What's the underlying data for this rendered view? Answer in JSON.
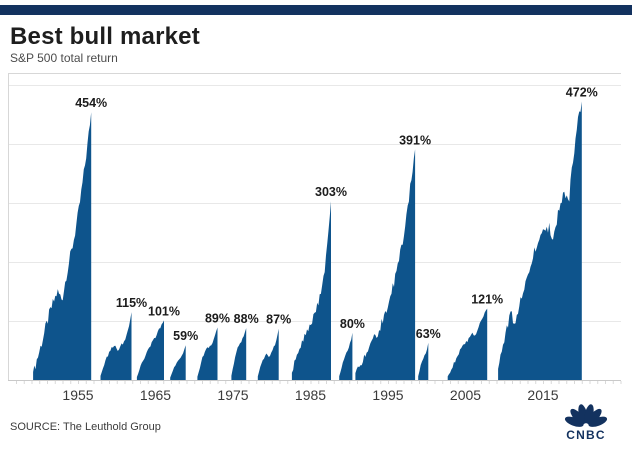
{
  "header": {
    "title": "Best bull market",
    "subtitle": "S&P 500 total return"
  },
  "footer": {
    "source": "SOURCE: The Leuthold Group",
    "logo_text": "CNBC"
  },
  "colors": {
    "brand_navy": "#13325f",
    "area_fill": "#0e548c",
    "gridline": "#e8e8e8",
    "plot_frame": "#d7d7d7",
    "axis_line": "#c9c9c9",
    "tick_mark": "#d9d9d9",
    "peak_label": "#1c1c1c",
    "year_label": "#3a3a3a"
  },
  "chart_data": {
    "type": "area",
    "title": "Best bull market",
    "subtitle": "S&P 500 total return",
    "source": "The Leuthold Group",
    "unit": "percent total return",
    "x_range": [
      1946,
      2021.3
    ],
    "y_range_pct": [
      0,
      533
    ],
    "y_gridlines_pct": [
      100,
      200,
      300,
      400,
      500
    ],
    "x_ticks": [
      1955,
      1965,
      1975,
      1985,
      1995,
      2005,
      2015
    ],
    "grid": "horizontal gridlines, no y-axis tick labels",
    "legend": false,
    "bulls": [
      {
        "label": "454%",
        "peak_pct": 454,
        "start_year": 1949.2,
        "end_year": 1956.7,
        "trajectory": [
          [
            0,
            0.03
          ],
          [
            0.1,
            0.1
          ],
          [
            0.2,
            0.18
          ],
          [
            0.3,
            0.26
          ],
          [
            0.42,
            0.33
          ],
          [
            0.5,
            0.3
          ],
          [
            0.58,
            0.4
          ],
          [
            0.68,
            0.5
          ],
          [
            0.78,
            0.62
          ],
          [
            0.88,
            0.78
          ],
          [
            0.95,
            0.9
          ],
          [
            1,
            1
          ]
        ]
      },
      {
        "label": "115%",
        "peak_pct": 115,
        "start_year": 1957.9,
        "end_year": 1961.9,
        "trajectory": [
          [
            0,
            0.06
          ],
          [
            0.18,
            0.3
          ],
          [
            0.35,
            0.48
          ],
          [
            0.45,
            0.52
          ],
          [
            0.55,
            0.44
          ],
          [
            0.68,
            0.52
          ],
          [
            0.8,
            0.58
          ],
          [
            0.9,
            0.75
          ],
          [
            1,
            1
          ]
        ]
      },
      {
        "label": "101%",
        "peak_pct": 101,
        "start_year": 1962.6,
        "end_year": 1966.1,
        "trajectory": [
          [
            0,
            0.05
          ],
          [
            0.2,
            0.3
          ],
          [
            0.4,
            0.5
          ],
          [
            0.6,
            0.66
          ],
          [
            0.75,
            0.78
          ],
          [
            0.88,
            0.9
          ],
          [
            1,
            1
          ]
        ]
      },
      {
        "label": "59%",
        "peak_pct": 59,
        "start_year": 1966.9,
        "end_year": 1968.9,
        "trajectory": [
          [
            0,
            0.07
          ],
          [
            0.25,
            0.35
          ],
          [
            0.5,
            0.55
          ],
          [
            0.7,
            0.68
          ],
          [
            0.85,
            0.8
          ],
          [
            1,
            1
          ]
        ]
      },
      {
        "label": "89%",
        "peak_pct": 89,
        "start_year": 1970.4,
        "end_year": 1973.0,
        "trajectory": [
          [
            0,
            0.06
          ],
          [
            0.25,
            0.42
          ],
          [
            0.45,
            0.6
          ],
          [
            0.6,
            0.62
          ],
          [
            0.72,
            0.68
          ],
          [
            0.85,
            0.8
          ],
          [
            1,
            1
          ]
        ]
      },
      {
        "label": "88%",
        "peak_pct": 88,
        "start_year": 1974.8,
        "end_year": 1976.7,
        "trajectory": [
          [
            0,
            0.08
          ],
          [
            0.3,
            0.52
          ],
          [
            0.5,
            0.68
          ],
          [
            0.7,
            0.76
          ],
          [
            0.85,
            0.84
          ],
          [
            1,
            1
          ]
        ]
      },
      {
        "label": "87%",
        "peak_pct": 87,
        "start_year": 1978.2,
        "end_year": 1980.9,
        "trajectory": [
          [
            0,
            0.07
          ],
          [
            0.22,
            0.38
          ],
          [
            0.4,
            0.5
          ],
          [
            0.55,
            0.44
          ],
          [
            0.7,
            0.58
          ],
          [
            0.85,
            0.72
          ],
          [
            1,
            1
          ]
        ]
      },
      {
        "label": "303%",
        "peak_pct": 303,
        "start_year": 1982.6,
        "end_year": 1987.65,
        "trajectory": [
          [
            0,
            0.04
          ],
          [
            0.15,
            0.15
          ],
          [
            0.3,
            0.23
          ],
          [
            0.45,
            0.3
          ],
          [
            0.6,
            0.38
          ],
          [
            0.72,
            0.47
          ],
          [
            0.83,
            0.6
          ],
          [
            0.92,
            0.78
          ],
          [
            1,
            1
          ]
        ]
      },
      {
        "label": "80%",
        "peak_pct": 80,
        "start_year": 1988.7,
        "end_year": 1990.4,
        "trajectory": [
          [
            0,
            0.08
          ],
          [
            0.3,
            0.38
          ],
          [
            0.55,
            0.58
          ],
          [
            0.75,
            0.72
          ],
          [
            0.9,
            0.85
          ],
          [
            1,
            1
          ]
        ]
      },
      {
        "label": "391%",
        "peak_pct": 391,
        "start_year": 1990.8,
        "end_year": 1998.5,
        "trajectory": [
          [
            0,
            0.03
          ],
          [
            0.15,
            0.1
          ],
          [
            0.3,
            0.17
          ],
          [
            0.45,
            0.25
          ],
          [
            0.58,
            0.35
          ],
          [
            0.7,
            0.48
          ],
          [
            0.8,
            0.62
          ],
          [
            0.9,
            0.8
          ],
          [
            0.96,
            0.92
          ],
          [
            1,
            1
          ]
        ]
      },
      {
        "label": "63%",
        "peak_pct": 63,
        "start_year": 1998.9,
        "end_year": 2000.2,
        "trajectory": [
          [
            0,
            0.1
          ],
          [
            0.3,
            0.45
          ],
          [
            0.55,
            0.62
          ],
          [
            0.75,
            0.72
          ],
          [
            0.9,
            0.84
          ],
          [
            1,
            1
          ]
        ]
      },
      {
        "label": "121%",
        "peak_pct": 121,
        "start_year": 2002.7,
        "end_year": 2007.8,
        "trajectory": [
          [
            0,
            0.05
          ],
          [
            0.2,
            0.28
          ],
          [
            0.35,
            0.45
          ],
          [
            0.5,
            0.55
          ],
          [
            0.62,
            0.67
          ],
          [
            0.7,
            0.62
          ],
          [
            0.85,
            0.85
          ],
          [
            1,
            1
          ]
        ]
      },
      {
        "label": "472%",
        "peak_pct": 472,
        "start_year": 2009.2,
        "end_year": 2020.0,
        "trajectory": [
          [
            0,
            0.04
          ],
          [
            0.1,
            0.17
          ],
          [
            0.16,
            0.24
          ],
          [
            0.2,
            0.2
          ],
          [
            0.3,
            0.33
          ],
          [
            0.42,
            0.45
          ],
          [
            0.52,
            0.53
          ],
          [
            0.6,
            0.55
          ],
          [
            0.66,
            0.52
          ],
          [
            0.74,
            0.62
          ],
          [
            0.8,
            0.68
          ],
          [
            0.84,
            0.63
          ],
          [
            0.9,
            0.8
          ],
          [
            0.95,
            0.92
          ],
          [
            1,
            1
          ]
        ]
      }
    ]
  }
}
